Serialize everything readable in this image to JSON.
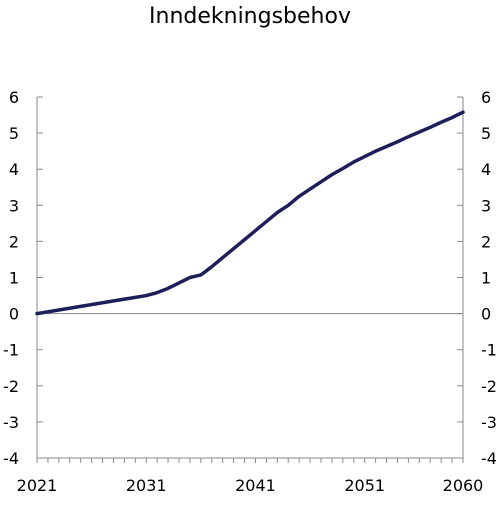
{
  "chart_data": {
    "type": "line",
    "title": "Inndekningsbehov",
    "xlabel": "",
    "ylabel": "",
    "xlim": [
      2021,
      2060
    ],
    "ylim": [
      -4,
      6
    ],
    "x_ticks": [
      2021,
      2031,
      2041,
      2051,
      2060
    ],
    "y_ticks": [
      6,
      5,
      4,
      3,
      2,
      1,
      0,
      -1,
      -2,
      -3,
      -4
    ],
    "grid": false,
    "legend": "none",
    "colors": {
      "line": "#1e1f5a",
      "zero_line": "#8a8a8a",
      "axis": "#8a8a8a"
    },
    "series": [
      {
        "x": [
          2021,
          2023,
          2025,
          2027,
          2029,
          2030,
          2031,
          2032,
          2033,
          2034,
          2035,
          2036,
          2037,
          2038,
          2039,
          2040,
          2041,
          2042,
          2043,
          2044,
          2045,
          2046,
          2047,
          2048,
          2049,
          2050,
          2051,
          2052,
          2053,
          2054,
          2055,
          2056,
          2057,
          2058,
          2059,
          2060
        ],
        "values": [
          0.0,
          0.1,
          0.2,
          0.3,
          0.4,
          0.45,
          0.5,
          0.58,
          0.7,
          0.85,
          1.0,
          1.07,
          1.3,
          1.55,
          1.8,
          2.05,
          2.3,
          2.55,
          2.8,
          3.0,
          3.25,
          3.45,
          3.65,
          3.85,
          4.02,
          4.2,
          4.35,
          4.5,
          4.63,
          4.76,
          4.9,
          5.03,
          5.16,
          5.3,
          5.43,
          5.58
        ]
      }
    ]
  }
}
